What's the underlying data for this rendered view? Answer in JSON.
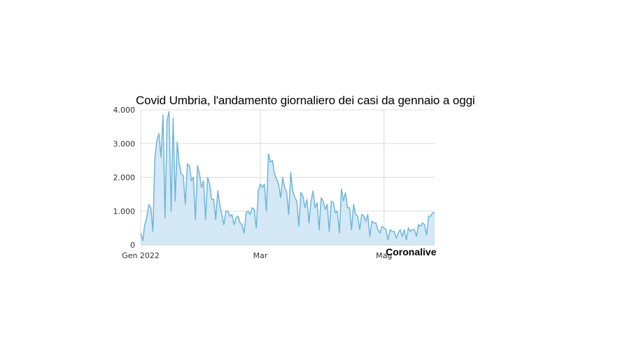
{
  "chart_data": {
    "type": "area",
    "title": "Covid Umbria, l'andamento giornaliero dei casi da gennaio a oggi",
    "source": "Coronalive",
    "xlabel": "",
    "ylabel": "",
    "ylim": [
      0,
      4000
    ],
    "yticks": [
      {
        "value": 0,
        "label": "0"
      },
      {
        "value": 1000,
        "label": "1.000"
      },
      {
        "value": 2000,
        "label": "2.000"
      },
      {
        "value": 3000,
        "label": "3.000"
      },
      {
        "value": 4000,
        "label": "4.000"
      }
    ],
    "xticks": [
      {
        "day": 0,
        "label": "Gen 2022"
      },
      {
        "day": 59,
        "label": "Mar"
      },
      {
        "day": 120,
        "label": "Mag"
      }
    ],
    "grid": true,
    "legend": "none",
    "colors": {
      "line": "#6fb6d8",
      "fill": "#d4e8f5",
      "grid": "#dddddd"
    },
    "start_date": "2022-01-01",
    "values": [
      350,
      120,
      600,
      800,
      1200,
      1100,
      400,
      2600,
      3100,
      3300,
      2600,
      3850,
      800,
      3700,
      3950,
      1000,
      3750,
      1300,
      3050,
      2400,
      2100,
      2050,
      1200,
      2400,
      2350,
      1900,
      2000,
      750,
      2350,
      2100,
      1700,
      1900,
      750,
      2000,
      1800,
      1350,
      1350,
      750,
      1600,
      1200,
      900,
      600,
      1000,
      1000,
      850,
      900,
      600,
      800,
      850,
      650,
      600,
      350,
      950,
      1000,
      900,
      1100,
      1050,
      500,
      1600,
      1800,
      1700,
      1800,
      1000,
      2700,
      2450,
      2500,
      2100,
      1950,
      1800,
      1400,
      2000,
      1700,
      1550,
      900,
      2150,
      1600,
      1400,
      1300,
      550,
      1550,
      1450,
      1100,
      1350,
      650,
      1300,
      1600,
      1100,
      1250,
      450,
      1400,
      1300,
      1050,
      1200,
      400,
      1300,
      1250,
      950,
      1000,
      350,
      1650,
      1300,
      1550,
      1100,
      1100,
      450,
      1200,
      900,
      850,
      450,
      900,
      850,
      700,
      900,
      250,
      700,
      650,
      650,
      450,
      350,
      550,
      500,
      450,
      150,
      450,
      400,
      400,
      200,
      350,
      450,
      250,
      450,
      150,
      500,
      400,
      450,
      450,
      250,
      600,
      550,
      650,
      600,
      300,
      850,
      850,
      950,
      950
    ]
  }
}
